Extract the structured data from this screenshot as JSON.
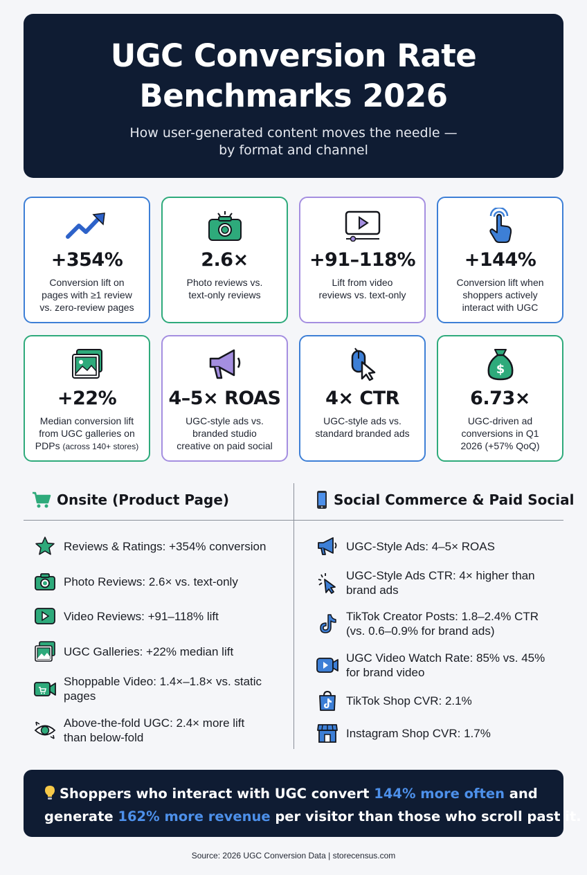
{
  "header": {
    "title_line1": "UGC Conversion Rate",
    "title_line2": "Benchmarks 2026",
    "subtitle_line1": "How user-generated content moves the needle —",
    "subtitle_line2": "by format and channel"
  },
  "cards": [
    {
      "stat": "+354%",
      "desc": [
        "Conversion lift on",
        "pages with ≥1 review",
        "vs. zero-review pages"
      ],
      "icon": "trend-up-icon",
      "border": "#3d7fd6"
    },
    {
      "stat": "2.6×",
      "desc": [
        "Photo reviews vs.",
        "text-only reviews"
      ],
      "icon": "camera-icon",
      "border": "#2eaa7b"
    },
    {
      "stat": "+91–118%",
      "desc": [
        "Lift from video",
        "reviews vs. text-only"
      ],
      "icon": "video-player-icon",
      "border": "#a48ee0"
    },
    {
      "stat": "+144%",
      "desc": [
        "Conversion lift when",
        "shoppers actively",
        "interact with UGC"
      ],
      "icon": "tap-hand-icon",
      "border": "#3d7fd6"
    },
    {
      "stat": "+22%",
      "desc": [
        "Median conversion lift",
        "from UGC galleries on",
        "PDPs"
      ],
      "desc_small": "(across 140+ stores)",
      "icon": "gallery-icon",
      "border": "#2eaa7b"
    },
    {
      "stat": "4–5× ROAS",
      "desc": [
        "UGC-style ads vs.",
        "branded studio",
        "creative on paid social"
      ],
      "icon": "megaphone-icon",
      "border": "#a48ee0"
    },
    {
      "stat": "4× CTR",
      "desc": [
        "UGC-style ads vs.",
        "standard branded ads"
      ],
      "icon": "mouse-cursor-icon",
      "border": "#3d7fd6"
    },
    {
      "stat": "6.73×",
      "desc": [
        "UGC-driven ad",
        "conversions in Q1",
        "2026 (+57% QoQ)"
      ],
      "icon": "money-bag-icon",
      "border": "#2eaa7b"
    }
  ],
  "onsite": {
    "heading": "Onsite (Product Page)",
    "items": [
      {
        "lines": [
          "Reviews & Ratings: +354% conversion"
        ],
        "icon": "star-icon"
      },
      {
        "lines": [
          "Photo Reviews: 2.6× vs. text-only"
        ],
        "icon": "camera-icon"
      },
      {
        "lines": [
          "Video Reviews: +91–118% lift"
        ],
        "icon": "play-icon"
      },
      {
        "lines": [
          "UGC Galleries: +22% median lift"
        ],
        "icon": "gallery-icon"
      },
      {
        "lines": [
          "Shoppable Video: 1.4×–1.8× vs. static",
          "pages"
        ],
        "icon": "video-cart-icon"
      },
      {
        "lines": [
          "Above-the-fold UGC: 2.4× more lift",
          "than below-fold"
        ],
        "icon": "eye-icon"
      }
    ]
  },
  "social": {
    "heading": "Social Commerce & Paid Social",
    "items": [
      {
        "lines": [
          "UGC-Style Ads: 4–5× ROAS"
        ],
        "icon": "megaphone-icon"
      },
      {
        "lines": [
          "UGC-Style Ads CTR: 4× higher than",
          "brand ads"
        ],
        "icon": "click-cursor-icon"
      },
      {
        "lines": [
          "TikTok Creator Posts: 1.8–2.4% CTR",
          "(vs. 0.6–0.9% for brand ads)"
        ],
        "icon": "tiktok-icon"
      },
      {
        "lines": [
          "UGC Video Watch Rate: 85% vs. 45%",
          "for brand video"
        ],
        "icon": "video-camera-icon"
      },
      {
        "lines": [
          "TikTok Shop CVR: 2.1%"
        ],
        "icon": "tiktok-shop-bag-icon"
      },
      {
        "lines": [
          "Instagram Shop CVR: 1.7%"
        ],
        "icon": "storefront-icon"
      }
    ]
  },
  "callout": {
    "l1_a": "Shoppers who interact with UGC convert ",
    "l1_hl": "144% more often",
    "l1_b": " and",
    "l2_a": "generate ",
    "l2_hl": "162% more revenue",
    "l2_b": " per visitor than those who scroll past it.",
    "highlight_color": "#4d90ea"
  },
  "source": "Source: 2026 UGC Conversion Data | storecensus.com"
}
